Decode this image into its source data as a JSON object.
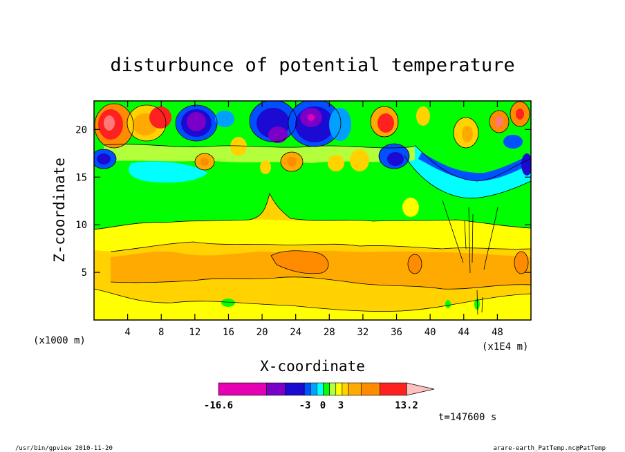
{
  "chart_data": {
    "type": "heatmap",
    "title": "disturbunce of potential temperature",
    "xlabel": "X-coordinate",
    "ylabel": "Z-coordinate",
    "x_unit_left": "(x1000 m)",
    "x_unit_right": "(x1E4 m)",
    "xlim": [
      0,
      52
    ],
    "ylim": [
      0,
      23
    ],
    "x_ticks": [
      4,
      8,
      12,
      16,
      20,
      24,
      28,
      32,
      36,
      40,
      44,
      48
    ],
    "y_ticks": [
      5,
      10,
      15,
      20
    ],
    "colorbar": {
      "min_label": "-16.6",
      "max_label": "13.2",
      "mid_labels": [
        "-3",
        "0",
        "3"
      ],
      "levels": [
        -16.6,
        -9,
        -6,
        -3,
        -2,
        -1,
        0,
        1,
        2,
        3,
        4,
        6,
        9,
        13.2
      ],
      "colors": [
        "#e600b4",
        "#7a00c8",
        "#1a0ad2",
        "#0050ff",
        "#00a0ff",
        "#00ffff",
        "#00ff00",
        "#b4ff3c",
        "#ffff00",
        "#ffd200",
        "#ffaa00",
        "#ff8c00",
        "#ff2020",
        "#ff7878",
        "#ffc0c0"
      ]
    },
    "time_label": "t=147600 s"
  },
  "footer": {
    "left": "/usr/bin/gpview  2010-11-20",
    "right": "arare-earth_PatTemp.nc@PatTemp"
  }
}
